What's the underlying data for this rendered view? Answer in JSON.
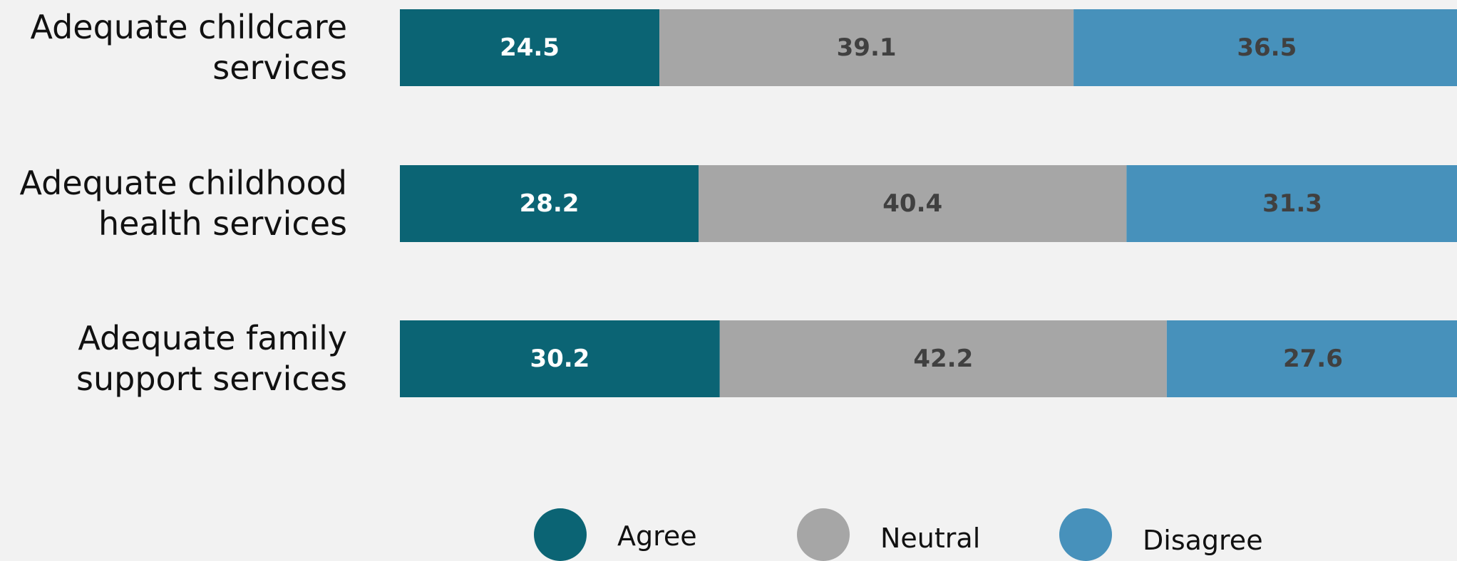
{
  "chart_data": {
    "type": "stacked_barh",
    "categories": [
      "Adequate childcare services",
      "Adequate childhood health services",
      "Adequate family support services"
    ],
    "series": [
      {
        "name": "Agree",
        "color": "#0b6474",
        "label_color": "#ffffff",
        "values": [
          24.5,
          28.2,
          30.2
        ]
      },
      {
        "name": "Neutral",
        "color": "#a6a6a6",
        "label_color": "#404040",
        "values": [
          39.1,
          40.4,
          42.2
        ]
      },
      {
        "name": "Disagree",
        "color": "#4791bb",
        "label_color": "#404040",
        "values": [
          36.5,
          31.3,
          27.6
        ]
      }
    ],
    "legend": "bottom"
  }
}
